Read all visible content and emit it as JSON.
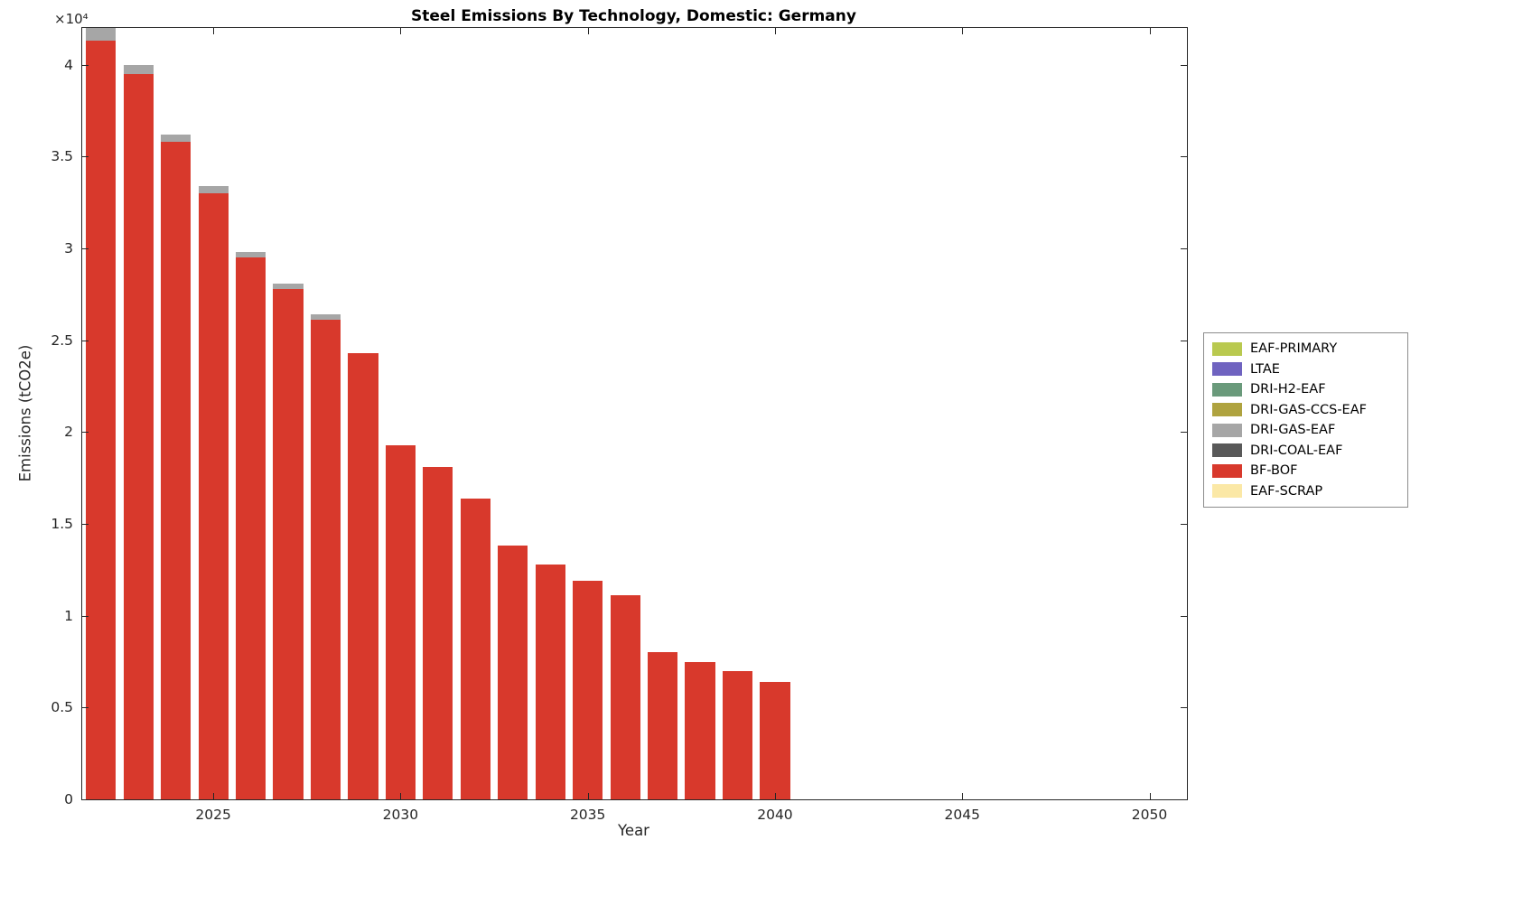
{
  "chart_data": {
    "type": "bar",
    "stacked": true,
    "title": "Steel Emissions By Technology, Domestic: Germany",
    "xlabel": "Year",
    "ylabel": "Emissions (tCO2e)",
    "y_multiplier": "×10⁴",
    "grid": false,
    "xlim": [
      2021.5,
      2051
    ],
    "ylim": [
      0,
      42000
    ],
    "xticks": [
      2025,
      2030,
      2035,
      2040,
      2045,
      2050
    ],
    "yticks": [
      {
        "v": 0,
        "label": "0"
      },
      {
        "v": 5000,
        "label": "0.5"
      },
      {
        "v": 10000,
        "label": "1"
      },
      {
        "v": 15000,
        "label": "1.5"
      },
      {
        "v": 20000,
        "label": "2"
      },
      {
        "v": 25000,
        "label": "2.5"
      },
      {
        "v": 30000,
        "label": "3"
      },
      {
        "v": 35000,
        "label": "3.5"
      },
      {
        "v": 40000,
        "label": "4"
      }
    ],
    "categories": [
      2022,
      2023,
      2024,
      2025,
      2026,
      2027,
      2028,
      2029,
      2030,
      2031,
      2032,
      2033,
      2034,
      2035,
      2036,
      2037,
      2038,
      2039,
      2040
    ],
    "series": [
      {
        "name": "EAF-SCRAP",
        "color": "#FBE8A6",
        "values": [
          0,
          0,
          0,
          0,
          0,
          0,
          0,
          0,
          0,
          0,
          0,
          0,
          0,
          0,
          0,
          0,
          0,
          0,
          0
        ]
      },
      {
        "name": "BF-BOF",
        "color": "#D8392C",
        "values": [
          41300,
          39500,
          35800,
          33000,
          29500,
          27800,
          26100,
          24300,
          19300,
          18100,
          16400,
          13800,
          12800,
          11900,
          11100,
          8000,
          7500,
          7000,
          6400
        ]
      },
      {
        "name": "DRI-COAL-EAF",
        "color": "#595959",
        "values": [
          0,
          0,
          0,
          0,
          0,
          0,
          0,
          0,
          0,
          0,
          0,
          0,
          0,
          0,
          0,
          0,
          0,
          0,
          0
        ]
      },
      {
        "name": "DRI-GAS-EAF",
        "color": "#A6A6A6",
        "values": [
          700,
          500,
          400,
          400,
          300,
          300,
          300,
          0,
          0,
          0,
          0,
          0,
          0,
          0,
          0,
          0,
          0,
          0,
          0
        ]
      },
      {
        "name": "DRI-GAS-CCS-EAF",
        "color": "#AFA33F",
        "values": [
          0,
          0,
          0,
          0,
          0,
          0,
          0,
          0,
          0,
          0,
          0,
          0,
          0,
          0,
          0,
          0,
          0,
          0,
          0
        ]
      },
      {
        "name": "DRI-H2-EAF",
        "color": "#6A9A7B",
        "values": [
          0,
          0,
          0,
          0,
          0,
          0,
          0,
          0,
          0,
          0,
          0,
          0,
          0,
          0,
          0,
          0,
          0,
          0,
          0
        ]
      },
      {
        "name": "LTAE",
        "color": "#6F63C0",
        "values": [
          0,
          0,
          0,
          0,
          0,
          0,
          0,
          0,
          0,
          0,
          0,
          0,
          0,
          0,
          0,
          0,
          0,
          0,
          0
        ]
      },
      {
        "name": "EAF-PRIMARY",
        "color": "#B9C94F",
        "values": [
          0,
          0,
          0,
          0,
          0,
          0,
          0,
          0,
          0,
          0,
          0,
          0,
          0,
          0,
          0,
          0,
          0,
          0,
          0
        ]
      }
    ],
    "legend": {
      "position": "right",
      "items": [
        {
          "label": "EAF-PRIMARY",
          "color": "#B9C94F"
        },
        {
          "label": "LTAE",
          "color": "#6F63C0"
        },
        {
          "label": "DRI-H2-EAF",
          "color": "#6A9A7B"
        },
        {
          "label": "DRI-GAS-CCS-EAF",
          "color": "#AFA33F"
        },
        {
          "label": "DRI-GAS-EAF",
          "color": "#A6A6A6"
        },
        {
          "label": "DRI-COAL-EAF",
          "color": "#595959"
        },
        {
          "label": "BF-BOF",
          "color": "#D8392C"
        },
        {
          "label": "EAF-SCRAP",
          "color": "#FBE8A6"
        }
      ]
    }
  }
}
